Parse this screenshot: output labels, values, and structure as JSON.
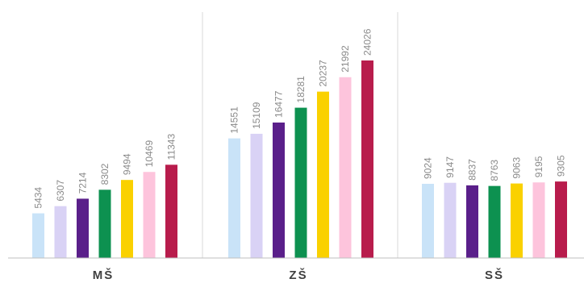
{
  "chart_data": {
    "type": "bar",
    "categories": [
      "MŠ",
      "ZŠ",
      "SŠ"
    ],
    "series": [
      {
        "values": [
          5434,
          14551,
          9024
        ]
      },
      {
        "values": [
          6307,
          15109,
          9147
        ]
      },
      {
        "values": [
          7214,
          16477,
          8837
        ]
      },
      {
        "values": [
          8302,
          18281,
          8763
        ]
      },
      {
        "values": [
          9494,
          20237,
          9063
        ]
      },
      {
        "values": [
          10469,
          21992,
          9195
        ]
      },
      {
        "values": [
          11343,
          24026,
          9305
        ]
      }
    ],
    "colors": [
      "#c9e3f8",
      "#d9d2f5",
      "#5a1f8a",
      "#0d9150",
      "#fad100",
      "#fdc4dc",
      "#b81c4c"
    ],
    "ylim": [
      0,
      24026
    ],
    "grid": false,
    "legend": "none"
  }
}
